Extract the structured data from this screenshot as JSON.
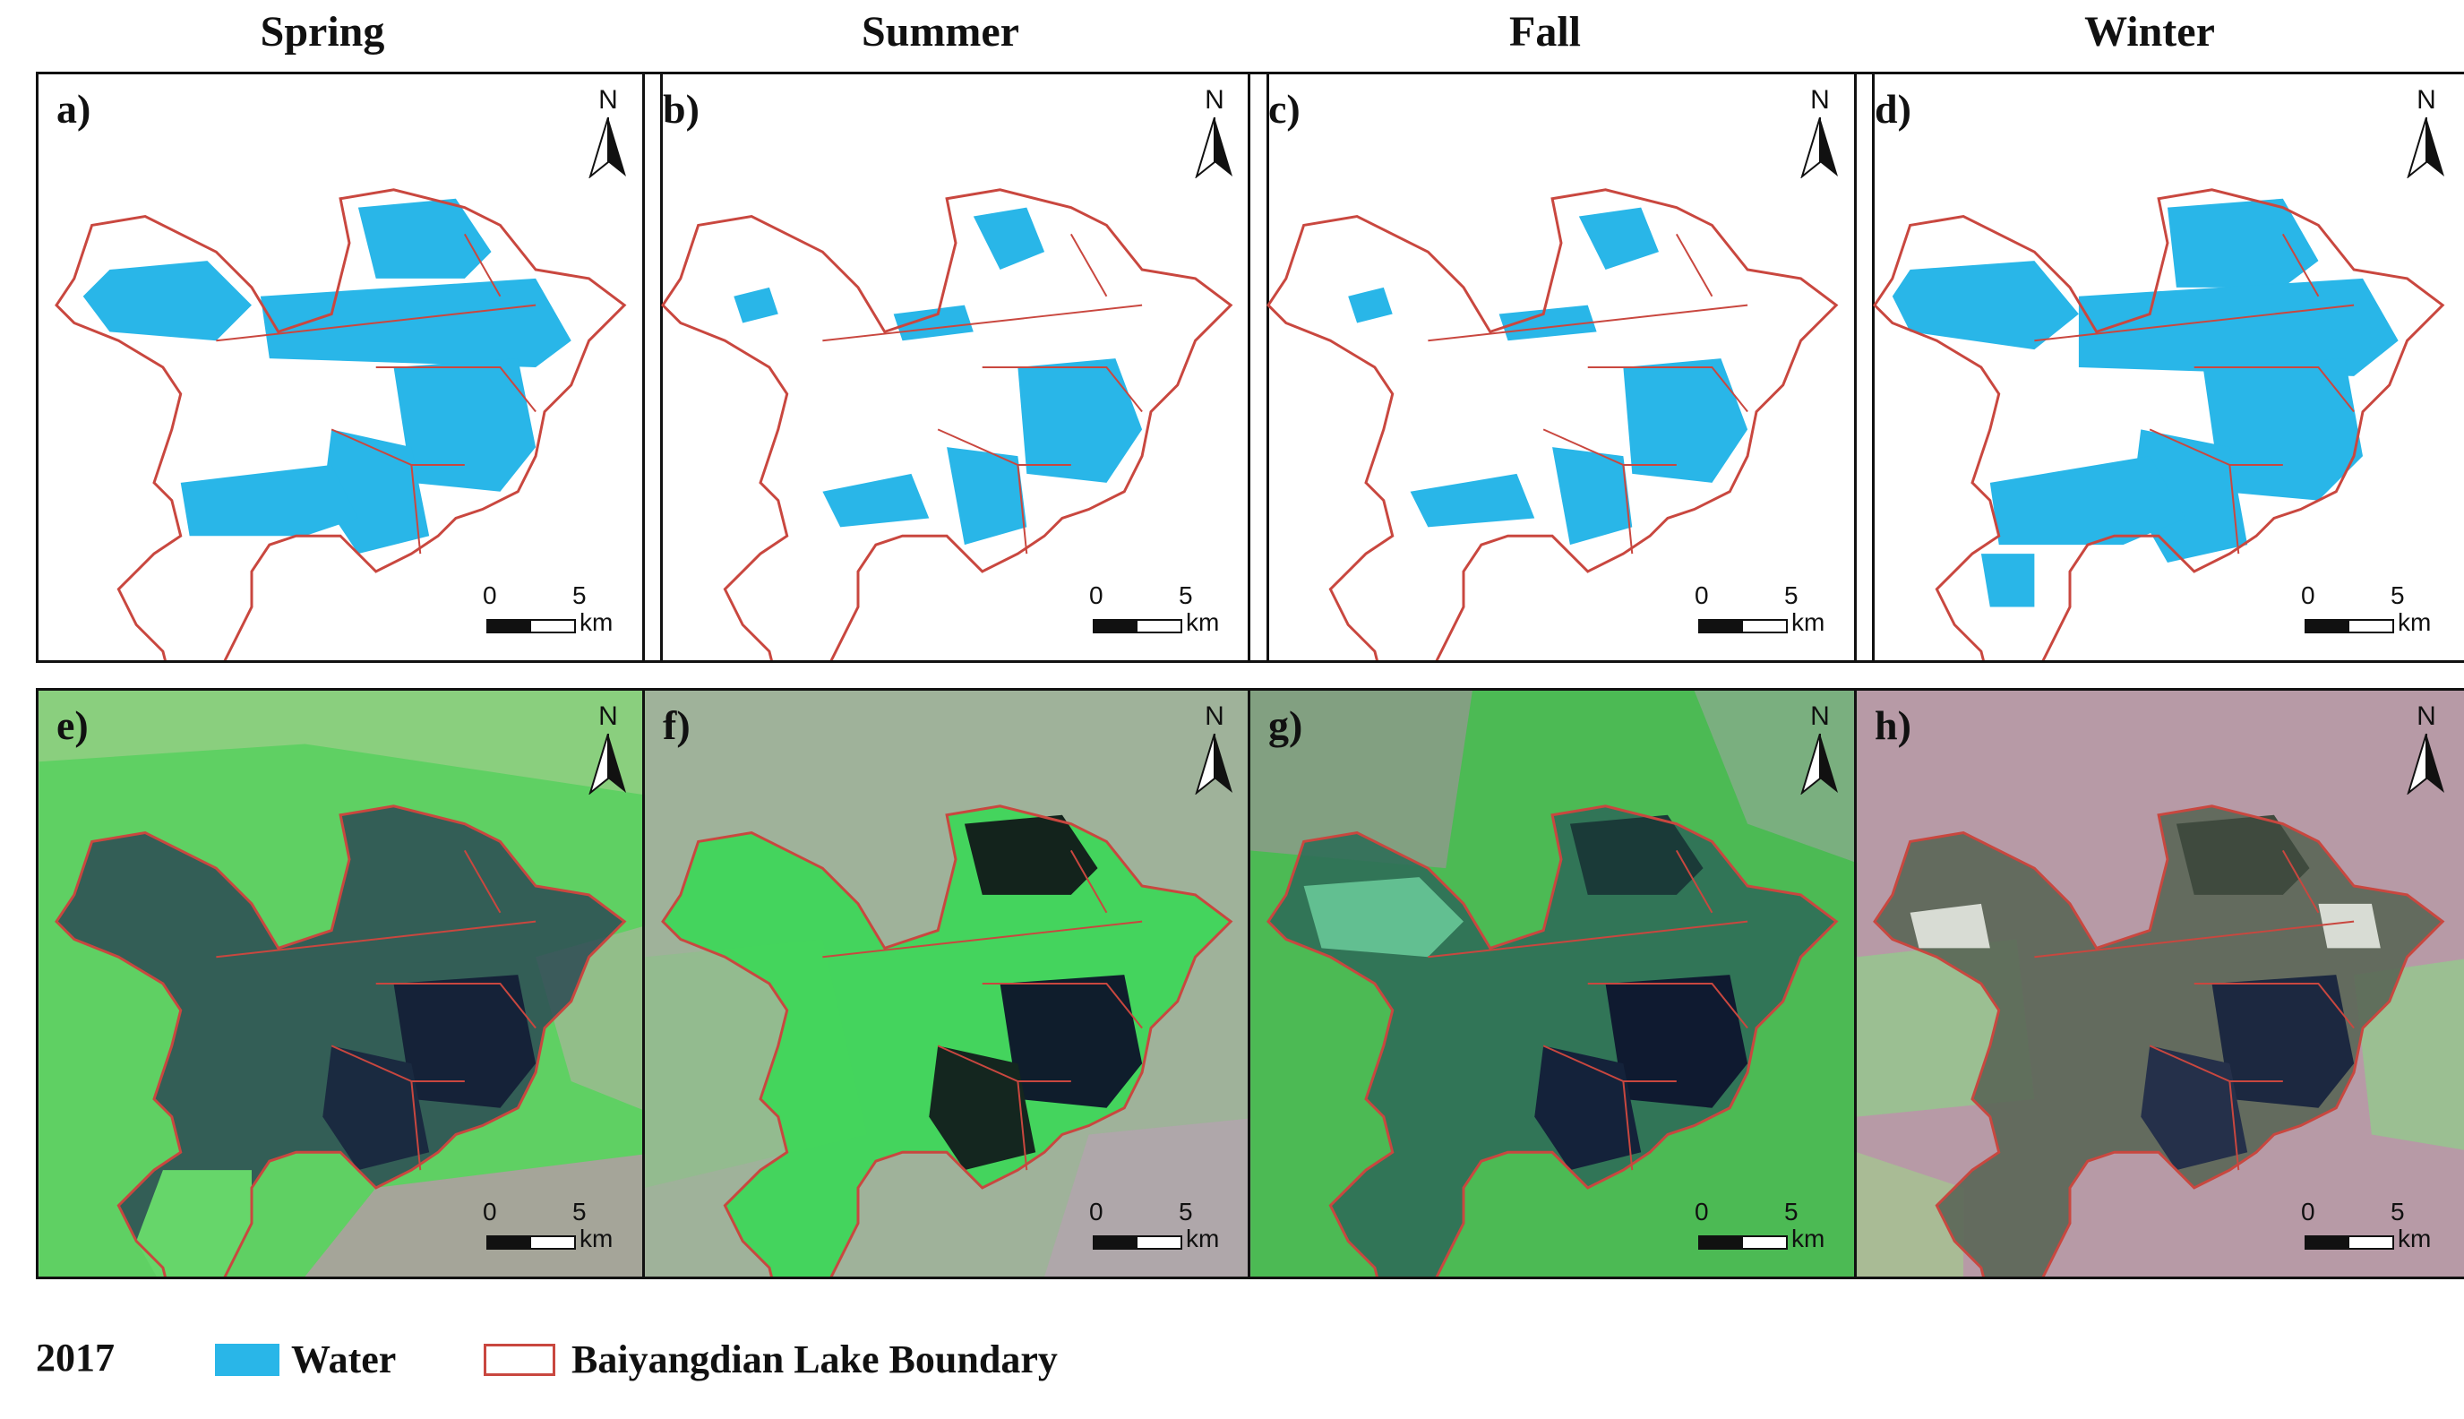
{
  "seasons": [
    "Spring",
    "Summer",
    "Fall",
    "Winter"
  ],
  "water_panels": [
    {
      "label": "a)",
      "season": "Spring",
      "water_extent": 0.55
    },
    {
      "label": "b)",
      "season": "Summer",
      "water_extent": 0.35
    },
    {
      "label": "c)",
      "season": "Fall",
      "water_extent": 0.38
    },
    {
      "label": "d)",
      "season": "Winter",
      "water_extent": 0.75
    }
  ],
  "satellite_panels": [
    {
      "label": "e)",
      "season": "Spring"
    },
    {
      "label": "f)",
      "season": "Summer"
    },
    {
      "label": "g)",
      "season": "Fall"
    },
    {
      "label": "h)",
      "season": "Winter"
    }
  ],
  "north_arrow": {
    "letter": "N",
    "icon": "north-arrow-icon"
  },
  "scale_bar": {
    "start": "0",
    "end": "5",
    "unit": "km"
  },
  "legend": {
    "year": "2017",
    "water_label": "Water",
    "boundary_label": "Baiyangdian Lake Boundary"
  },
  "colors": {
    "water": "#29b6e8",
    "boundary": "#c9473f",
    "satellite_green": "#55c95a",
    "satellite_pink": "#b79aa6",
    "satellite_dark_water": "#1f2f45"
  }
}
